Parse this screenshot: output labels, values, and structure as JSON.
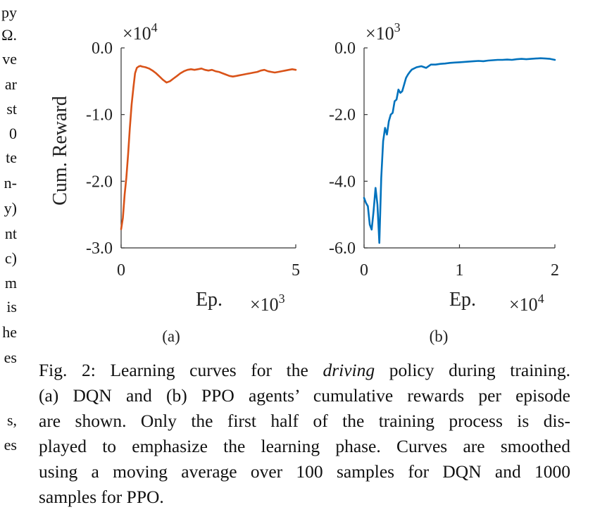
{
  "margin_fragments": [
    "py",
    "Ω.",
    "ve",
    "ar",
    "st",
    "0",
    "te",
    "n-",
    "y)",
    "nt",
    "c)",
    "m",
    "is",
    "he",
    "es",
    "s,",
    "es"
  ],
  "chart_data": [
    {
      "type": "line",
      "panel_label": "(a)",
      "ylabel": "Cum. Reward",
      "xlabel": "Ep.",
      "x_multiplier": "×10",
      "x_multiplier_exp": "3",
      "y_multiplier": "×10",
      "y_multiplier_exp": "4",
      "xlim": [
        0,
        5
      ],
      "ylim": [
        -3.0,
        0.0
      ],
      "xticks": [
        "0",
        "5"
      ],
      "xtick_values": [
        0,
        5
      ],
      "yticks": [
        "0.0",
        "-1.0",
        "-2.0",
        "-3.0"
      ],
      "ytick_values": [
        0.0,
        -1.0,
        -2.0,
        -3.0
      ],
      "color": "#D95319",
      "series": [
        {
          "x": [
            0,
            0.05,
            0.1,
            0.15,
            0.2,
            0.25,
            0.3,
            0.35,
            0.4,
            0.45,
            0.5,
            0.55,
            0.6,
            0.7,
            0.8,
            0.9,
            1.0,
            1.1,
            1.2,
            1.3,
            1.4,
            1.5,
            1.6,
            1.7,
            1.8,
            1.9,
            2.0,
            2.1,
            2.2,
            2.3,
            2.4,
            2.5,
            2.6,
            2.7,
            2.8,
            2.9,
            3.0,
            3.1,
            3.2,
            3.3,
            3.4,
            3.5,
            3.6,
            3.7,
            3.8,
            3.9,
            4.0,
            4.1,
            4.2,
            4.3,
            4.4,
            4.5,
            4.6,
            4.7,
            4.8,
            4.9,
            5.0
          ],
          "y": [
            -2.72,
            -2.55,
            -2.2,
            -1.95,
            -1.6,
            -1.2,
            -0.85,
            -0.6,
            -0.38,
            -0.3,
            -0.28,
            -0.27,
            -0.28,
            -0.29,
            -0.31,
            -0.34,
            -0.38,
            -0.43,
            -0.48,
            -0.52,
            -0.5,
            -0.46,
            -0.42,
            -0.38,
            -0.35,
            -0.33,
            -0.32,
            -0.33,
            -0.32,
            -0.31,
            -0.33,
            -0.34,
            -0.33,
            -0.35,
            -0.36,
            -0.38,
            -0.4,
            -0.42,
            -0.43,
            -0.42,
            -0.41,
            -0.4,
            -0.39,
            -0.38,
            -0.37,
            -0.36,
            -0.34,
            -0.33,
            -0.35,
            -0.36,
            -0.37,
            -0.36,
            -0.35,
            -0.34,
            -0.33,
            -0.32,
            -0.33
          ]
        }
      ]
    },
    {
      "type": "line",
      "panel_label": "(b)",
      "ylabel": "",
      "xlabel": "Ep.",
      "x_multiplier": "×10",
      "x_multiplier_exp": "4",
      "y_multiplier": "×10",
      "y_multiplier_exp": "3",
      "xlim": [
        0,
        2
      ],
      "ylim": [
        -6.0,
        0.0
      ],
      "xticks": [
        "0",
        "1",
        "2"
      ],
      "xtick_values": [
        0,
        1,
        2
      ],
      "yticks": [
        "0.0",
        "-2.0",
        "-4.0",
        "-6.0"
      ],
      "ytick_values": [
        0.0,
        -2.0,
        -4.0,
        -6.0
      ],
      "color": "#0072BD",
      "series": [
        {
          "x": [
            0,
            0.02,
            0.04,
            0.06,
            0.08,
            0.1,
            0.12,
            0.14,
            0.16,
            0.18,
            0.2,
            0.22,
            0.24,
            0.26,
            0.28,
            0.3,
            0.32,
            0.34,
            0.36,
            0.38,
            0.4,
            0.42,
            0.44,
            0.46,
            0.48,
            0.5,
            0.55,
            0.6,
            0.65,
            0.7,
            0.75,
            0.8,
            0.85,
            0.9,
            0.95,
            1.0,
            1.05,
            1.1,
            1.15,
            1.2,
            1.25,
            1.3,
            1.35,
            1.4,
            1.45,
            1.5,
            1.55,
            1.6,
            1.65,
            1.7,
            1.75,
            1.8,
            1.85,
            1.9,
            1.95,
            2.0
          ],
          "y": [
            -4.5,
            -4.65,
            -4.75,
            -5.3,
            -5.45,
            -4.9,
            -4.2,
            -4.7,
            -5.85,
            -3.9,
            -2.8,
            -2.4,
            -2.6,
            -2.2,
            -2.0,
            -1.95,
            -1.6,
            -1.55,
            -1.25,
            -1.35,
            -1.3,
            -1.1,
            -0.9,
            -0.8,
            -0.72,
            -0.65,
            -0.58,
            -0.55,
            -0.6,
            -0.5,
            -0.5,
            -0.48,
            -0.47,
            -0.45,
            -0.44,
            -0.43,
            -0.42,
            -0.41,
            -0.4,
            -0.39,
            -0.4,
            -0.38,
            -0.37,
            -0.36,
            -0.36,
            -0.35,
            -0.36,
            -0.34,
            -0.33,
            -0.34,
            -0.33,
            -0.32,
            -0.31,
            -0.32,
            -0.33,
            -0.36
          ]
        }
      ]
    }
  ],
  "caption": {
    "lines": [
      [
        {
          "t": "Fig. 2: Learning curves for the "
        },
        {
          "t": "driving",
          "i": true
        },
        {
          "t": " policy during training."
        }
      ],
      [
        {
          "t": "(a) DQN and (b) PPO agents’ cumulative rewards per episode"
        }
      ],
      [
        {
          "t": "are shown. Only the first half of the training process is dis-"
        }
      ],
      [
        {
          "t": "played to emphasize the learning phase. Curves are smoothed"
        }
      ],
      [
        {
          "t": "using a moving average over 100 samples for DQN and 1000"
        }
      ],
      [
        {
          "t": "samples for PPO."
        }
      ]
    ]
  }
}
